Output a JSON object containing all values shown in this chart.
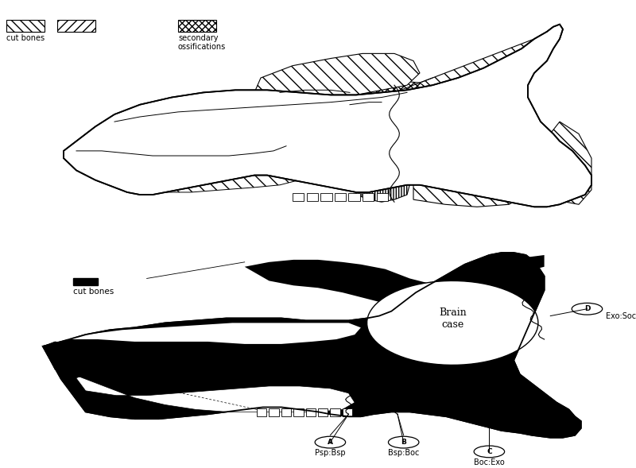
{
  "background_color": "#ffffff",
  "legend_top_hatch1": "cut bones",
  "legend_top_hatch2": "secondary\nossifications",
  "legend_bottom_solid": "cut bones",
  "suture_labels": {
    "A": "Psp:Bsp",
    "B": "Bsp:Boc",
    "C": "Boc:Exo",
    "D": "Exo:Soc"
  },
  "brain_case_label": "Brain\ncase",
  "figsize": [
    8.0,
    5.89
  ],
  "dpi": 100
}
